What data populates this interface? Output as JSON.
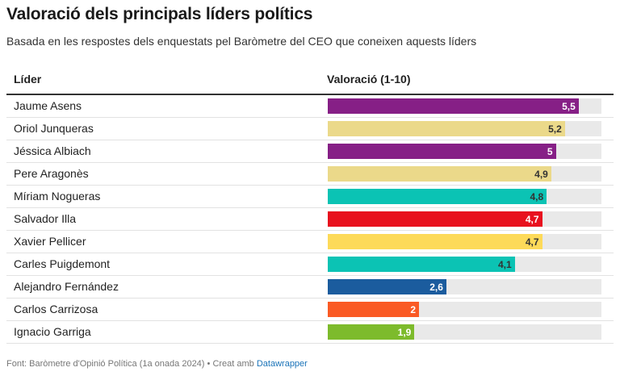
{
  "chart_data": {
    "type": "bar",
    "title": "Valoració dels principals líders polítics",
    "subtitle": "Basada en les respostes dels enquestats pel Baròmetre del CEO que coneixen aquests líders",
    "columns": [
      "Líder",
      "Valoració (1-10)"
    ],
    "xlim": [
      0,
      6
    ],
    "rows": [
      {
        "name": "Jaume Asens",
        "value": 5.5,
        "label": "5,5",
        "color": "#861f86",
        "label_color": "#ffffff"
      },
      {
        "name": "Oriol Junqueras",
        "value": 5.2,
        "label": "5,2",
        "color": "#ebd98a",
        "label_color": "#333333"
      },
      {
        "name": "Jéssica Albiach",
        "value": 5.0,
        "label": "5",
        "color": "#861f86",
        "label_color": "#ffffff"
      },
      {
        "name": "Pere Aragonès",
        "value": 4.9,
        "label": "4,9",
        "color": "#ebd98a",
        "label_color": "#333333"
      },
      {
        "name": "Míriam Nogueras",
        "value": 4.8,
        "label": "4,8",
        "color": "#0bc3b4",
        "label_color": "#333333"
      },
      {
        "name": "Salvador Illa",
        "value": 4.7,
        "label": "4,7",
        "color": "#e8111e",
        "label_color": "#ffffff"
      },
      {
        "name": "Xavier Pellicer",
        "value": 4.7,
        "label": "4,7",
        "color": "#fdda59",
        "label_color": "#333333"
      },
      {
        "name": "Carles Puigdemont",
        "value": 4.1,
        "label": "4,1",
        "color": "#0bc3b4",
        "label_color": "#333333"
      },
      {
        "name": "Alejandro Fernández",
        "value": 2.6,
        "label": "2,6",
        "color": "#1b5c9e",
        "label_color": "#ffffff"
      },
      {
        "name": "Carlos Carrizosa",
        "value": 2.0,
        "label": "2",
        "color": "#fa5a24",
        "label_color": "#ffffff"
      },
      {
        "name": "Ignacio Garriga",
        "value": 1.9,
        "label": "1,9",
        "color": "#7dbb2c",
        "label_color": "#ffffff"
      }
    ]
  },
  "footer": {
    "source": "Font: Baròmetre d'Opinió Política (1a onada 2024)",
    "created": "• Creat amb",
    "tool": "Datawrapper"
  }
}
